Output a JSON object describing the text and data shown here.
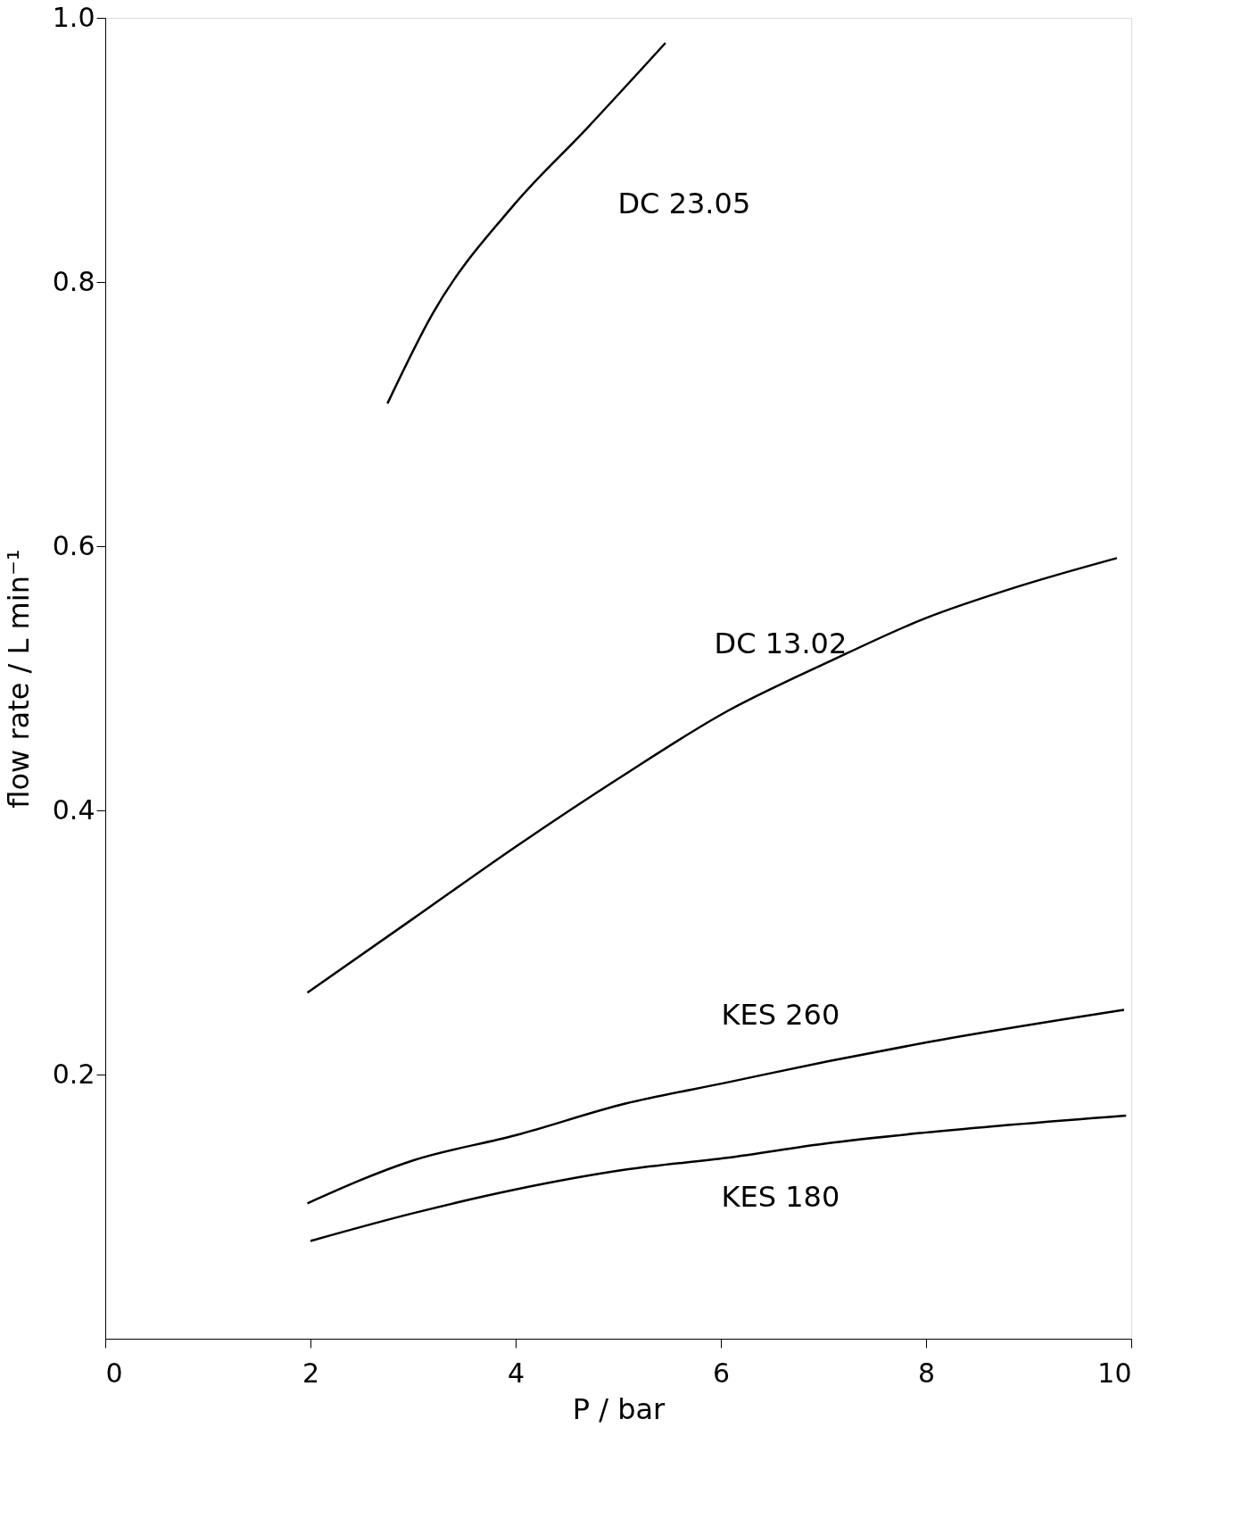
{
  "chart_data": {
    "type": "line",
    "xlabel": "P / bar",
    "ylabel": "flow rate / L min⁻¹",
    "xlim": [
      0,
      10
    ],
    "xticks": [
      0,
      2,
      4,
      6,
      8,
      10
    ],
    "ylim": [
      0,
      1.0
    ],
    "yticks": [
      0.2,
      0.4,
      0.6,
      0.8,
      {
        "value": 1.0,
        "label": "1.0"
      }
    ],
    "grid": false,
    "marker": "none",
    "line_style": "solid",
    "series": [
      {
        "name": "DC 23.05",
        "color": "#000000",
        "x": [
          2.75,
          3.19,
          3.99,
          4.69,
          5.46
        ],
        "values": [
          0.708,
          0.776,
          0.859,
          0.916,
          0.981
        ]
      },
      {
        "name": "DC 13.02",
        "color": "#000000",
        "x": [
          1.97,
          3.0,
          4.01,
          5.02,
          6.06,
          7.04,
          7.98,
          8.92,
          9.86
        ],
        "values": [
          0.262,
          0.318,
          0.373,
          0.425,
          0.475,
          0.512,
          0.545,
          0.57,
          0.591
        ]
      },
      {
        "name": "KES 260",
        "color": "#000000",
        "x": [
          1.97,
          3.0,
          4.0,
          5.07,
          6.06,
          7.04,
          7.98,
          9.93
        ],
        "values": [
          0.1025,
          0.135,
          0.154,
          0.178,
          0.194,
          0.21,
          0.224,
          0.249
        ]
      },
      {
        "name": "KES 180",
        "color": "#000000",
        "x": [
          2.0,
          3.0,
          4.0,
          5.07,
          6.06,
          7.04,
          7.98,
          9.95
        ],
        "values": [
          0.074,
          0.095,
          0.113,
          0.128,
          0.137,
          0.148,
          0.156,
          0.169
        ]
      }
    ]
  }
}
